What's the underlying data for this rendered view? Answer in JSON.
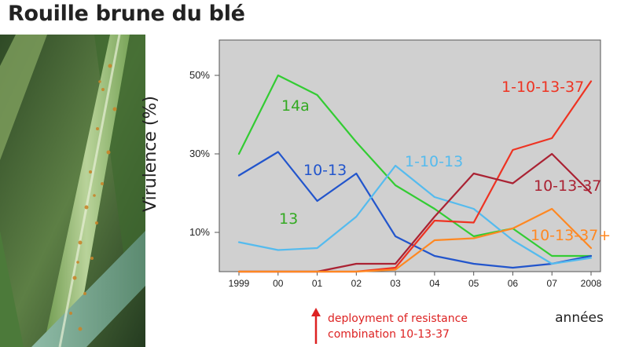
{
  "page": {
    "title": "Rouille brune du blé"
  },
  "chart_data": {
    "type": "line",
    "x": [
      "1999",
      "00",
      "01",
      "02",
      "03",
      "04",
      "05",
      "06",
      "07",
      "2008"
    ],
    "ylabel": "Virulence (%)",
    "xlabel": "années",
    "ylim": [
      0,
      0.58
    ],
    "yticks": [
      {
        "label": "50%",
        "value": 0.5
      },
      {
        "label": "30%",
        "value": 0.3
      },
      {
        "label": "10%",
        "value": 0.1
      }
    ],
    "grid": false,
    "series": [
      {
        "name": "14a",
        "color": "#33cc33",
        "values": [
          0.3,
          0.5,
          0.45,
          0.33,
          0.22,
          0.16,
          0.09,
          0.11,
          0.04,
          0.04
        ]
      },
      {
        "name": "10-13",
        "color": "#2255cc",
        "values": [
          0.245,
          0.305,
          0.18,
          0.25,
          0.09,
          0.04,
          0.02,
          0.01,
          0.02,
          0.04
        ]
      },
      {
        "name": "1-10-13",
        "color": "#55bbee",
        "values": [
          0.075,
          0.055,
          0.06,
          0.14,
          0.27,
          0.19,
          0.16,
          0.08,
          0.02,
          0.035
        ]
      },
      {
        "name": "1-10-13-37",
        "color": "#ee3322",
        "values": [
          0,
          0,
          0,
          0,
          0.01,
          0.13,
          0.125,
          0.31,
          0.34,
          0.485
        ]
      },
      {
        "name": "10-13-37",
        "color": "#aa2233",
        "values": [
          0,
          0,
          0,
          0.02,
          0.02,
          0.14,
          0.25,
          0.225,
          0.3,
          0.2
        ]
      },
      {
        "name": "10-13-37+",
        "color": "#ff8822",
        "values": [
          0,
          0,
          0,
          0,
          0.005,
          0.08,
          0.085,
          0.11,
          0.16,
          0.06
        ]
      }
    ],
    "labels": [
      {
        "text": "14a",
        "color": "#33aa22"
      },
      {
        "text": "13",
        "color": "#33aa22"
      },
      {
        "text": "10-13",
        "color": "#2255cc"
      },
      {
        "text": "1-10-13",
        "color": "#55bbee"
      },
      {
        "text": "1-10-13-37",
        "color": "#ee3322"
      },
      {
        "text": "10-13-37",
        "color": "#aa2233"
      },
      {
        "text": "10-13-37+",
        "color": "#ff8822"
      }
    ],
    "annotation": {
      "lines": [
        "deployment of resistance",
        "combination 10-13-37"
      ],
      "color": "#dd2222"
    }
  }
}
